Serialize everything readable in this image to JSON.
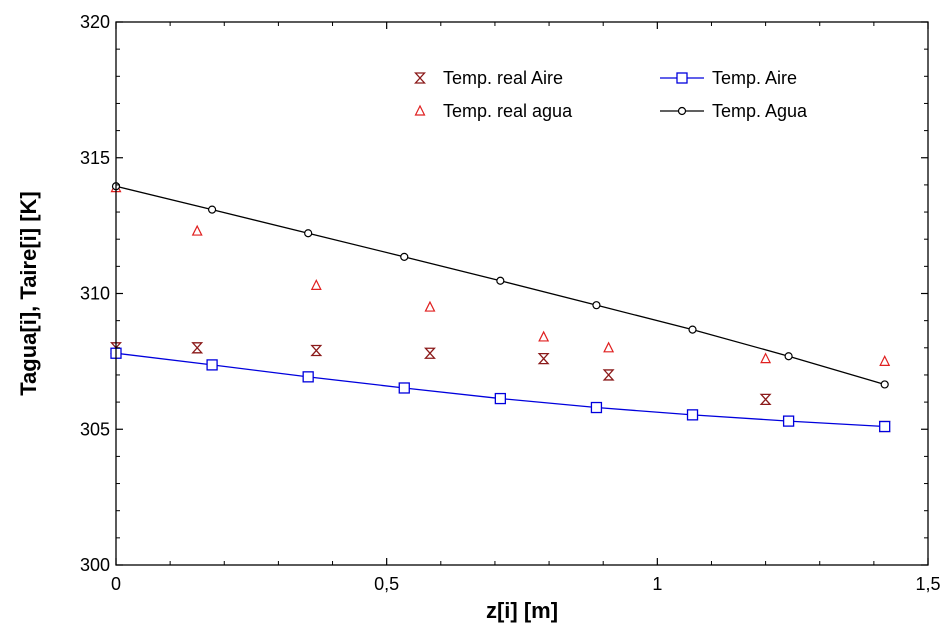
{
  "chart_data": {
    "type": "scatter",
    "xlabel": "z[i]  [m]",
    "ylabel": "Tagua[i],  Taire[i] [K]",
    "xlim": [
      0,
      1.5
    ],
    "ylim": [
      300,
      320
    ],
    "x_ticks": [
      "0",
      "0,5",
      "1",
      "1,5"
    ],
    "x_tick_values": [
      0,
      0.5,
      1,
      1.5
    ],
    "y_ticks": [
      "300",
      "305",
      "310",
      "315",
      "320"
    ],
    "y_tick_values": [
      300,
      305,
      310,
      315,
      320
    ],
    "legend_position": "top-right",
    "series": [
      {
        "name": "Temp. real Aire",
        "style": "markers",
        "marker": "hourglass",
        "color": "#8B1A1A",
        "x": [
          0,
          0.15,
          0.37,
          0.58,
          0.79,
          0.91,
          1.2,
          1.42
        ],
        "y": [
          308.0,
          308.0,
          307.9,
          307.8,
          307.6,
          307.0,
          306.1,
          305.1
        ]
      },
      {
        "name": "Temp. real agua",
        "style": "markers",
        "marker": "triangle",
        "color": "#E02020",
        "x": [
          0,
          0.15,
          0.37,
          0.58,
          0.79,
          0.91,
          1.2,
          1.42
        ],
        "y": [
          313.9,
          312.3,
          310.3,
          309.5,
          308.4,
          308.0,
          307.6,
          307.5
        ]
      },
      {
        "name": "Temp. Aire",
        "style": "line-markers",
        "marker": "square",
        "color": "#0000DD",
        "x": [
          0,
          0.1775,
          0.355,
          0.5325,
          0.71,
          0.8875,
          1.065,
          1.2425,
          1.42
        ],
        "y": [
          307.8,
          307.37,
          306.93,
          306.52,
          306.13,
          305.8,
          305.53,
          305.3,
          305.1
        ]
      },
      {
        "name": "Temp. Agua",
        "style": "line-markers",
        "marker": "circle",
        "color": "#000000",
        "x": [
          0,
          0.1775,
          0.355,
          0.5325,
          0.71,
          0.8875,
          1.065,
          1.2425,
          1.42
        ],
        "y": [
          313.95,
          313.09,
          312.22,
          311.35,
          310.47,
          309.57,
          308.67,
          307.69,
          306.65
        ]
      }
    ]
  }
}
